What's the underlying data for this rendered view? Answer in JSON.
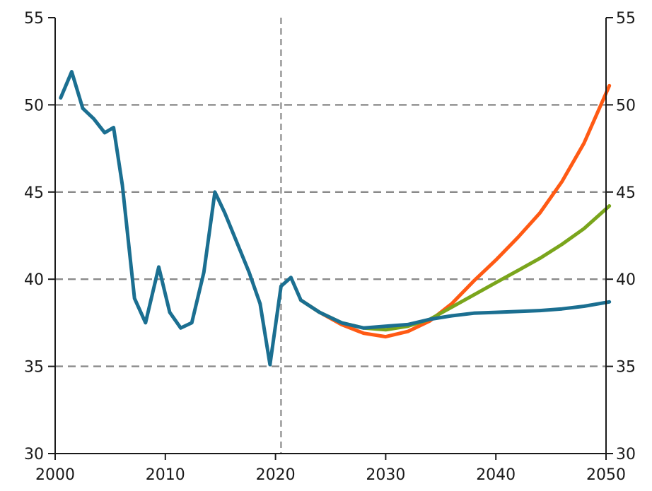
{
  "chart_data": {
    "type": "line",
    "title": "",
    "xlabel": "",
    "ylabel": "",
    "xlim": [
      2000,
      2050
    ],
    "ylim": [
      30,
      55
    ],
    "x_ticks": [
      "2000",
      "2010",
      "2020",
      "2030",
      "2040",
      "2050"
    ],
    "y_ticks": [
      "30",
      "35",
      "40",
      "45",
      "50",
      "55"
    ],
    "grid": "horizontal dashed",
    "reference_line_x": 2020.5,
    "colors": {
      "blue": "#1b6f91",
      "orange": "#ff5a14",
      "green": "#7aa51c",
      "grid": "#8a8a8a",
      "axis": "#1a1a1a"
    },
    "series": [
      {
        "color": "blue",
        "points": [
          [
            2000.5,
            50.4
          ],
          [
            2001.5,
            51.9
          ],
          [
            2002.5,
            49.8
          ],
          [
            2003.5,
            49.2
          ],
          [
            2004.5,
            48.4
          ],
          [
            2005.3,
            48.7
          ],
          [
            2006.1,
            45.4
          ],
          [
            2007.2,
            38.9
          ],
          [
            2008.2,
            37.5
          ],
          [
            2009.4,
            40.7
          ],
          [
            2010.4,
            38.1
          ],
          [
            2011.4,
            37.2
          ],
          [
            2012.4,
            37.5
          ],
          [
            2013.5,
            40.4
          ],
          [
            2014.5,
            45.0
          ],
          [
            2015.4,
            43.8
          ],
          [
            2016.5,
            42.1
          ],
          [
            2017.6,
            40.4
          ],
          [
            2018.6,
            38.6
          ],
          [
            2019.5,
            35.1
          ],
          [
            2020.5,
            39.6
          ],
          [
            2021.4,
            40.1
          ],
          [
            2022.3,
            38.8
          ],
          [
            2024.0,
            38.1
          ],
          [
            2026.0,
            37.5
          ],
          [
            2028.0,
            37.2
          ],
          [
            2030.0,
            37.3
          ],
          [
            2032.0,
            37.4
          ],
          [
            2034.0,
            37.7
          ],
          [
            2036.0,
            37.9
          ],
          [
            2038.0,
            38.05
          ],
          [
            2040.0,
            38.1
          ],
          [
            2042.0,
            38.15
          ],
          [
            2044.0,
            38.2
          ],
          [
            2046.0,
            38.3
          ],
          [
            2048.0,
            38.45
          ],
          [
            2050.3,
            38.7
          ]
        ]
      },
      {
        "color": "orange",
        "points": [
          [
            2022.3,
            38.8
          ],
          [
            2024.0,
            38.1
          ],
          [
            2026.0,
            37.4
          ],
          [
            2028.0,
            36.9
          ],
          [
            2030.0,
            36.7
          ],
          [
            2032.0,
            37.0
          ],
          [
            2034.0,
            37.6
          ],
          [
            2036.0,
            38.6
          ],
          [
            2038.0,
            39.9
          ],
          [
            2040.0,
            41.1
          ],
          [
            2042.0,
            42.4
          ],
          [
            2044.0,
            43.8
          ],
          [
            2046.0,
            45.6
          ],
          [
            2048.0,
            47.8
          ],
          [
            2050.3,
            51.1
          ]
        ]
      },
      {
        "color": "green",
        "points": [
          [
            2022.3,
            38.8
          ],
          [
            2024.0,
            38.1
          ],
          [
            2026.0,
            37.5
          ],
          [
            2028.0,
            37.2
          ],
          [
            2030.0,
            37.1
          ],
          [
            2032.0,
            37.3
          ],
          [
            2034.0,
            37.7
          ],
          [
            2036.0,
            38.4
          ],
          [
            2038.0,
            39.1
          ],
          [
            2040.0,
            39.8
          ],
          [
            2042.0,
            40.5
          ],
          [
            2044.0,
            41.2
          ],
          [
            2046.0,
            42.0
          ],
          [
            2048.0,
            42.9
          ],
          [
            2050.3,
            44.2
          ]
        ]
      }
    ]
  }
}
